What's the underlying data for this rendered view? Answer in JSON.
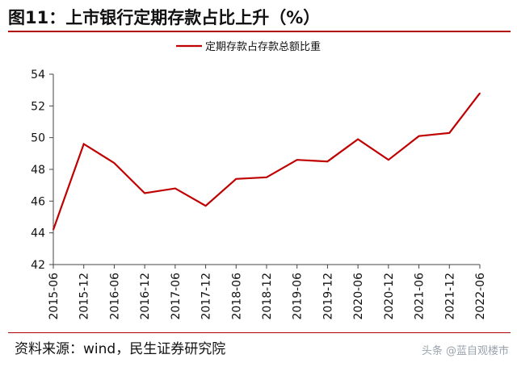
{
  "header": {
    "title": "图11：上市银行定期存款占比上升（%）"
  },
  "footer": {
    "source": "资料来源：wind，民生证券研究院",
    "watermark": "头条 @蓝自观楼市"
  },
  "chart_data": {
    "type": "line",
    "title": "图11：上市银行定期存款占比上升（%）",
    "categories": [
      "2015-06",
      "2015-12",
      "2016-06",
      "2016-12",
      "2017-06",
      "2017-12",
      "2018-06",
      "2018-12",
      "2019-06",
      "2019-12",
      "2020-06",
      "2020-12",
      "2021-06",
      "2021-12",
      "2022-06"
    ],
    "series": [
      {
        "name": "定期存款占存款总额比重",
        "color": "#c00000",
        "values": [
          44.2,
          49.6,
          48.4,
          46.5,
          46.8,
          45.7,
          47.4,
          47.5,
          48.6,
          48.5,
          49.9,
          48.6,
          50.1,
          50.3,
          52.8
        ]
      }
    ],
    "ylim": [
      42,
      54
    ],
    "yticks": [
      42,
      44,
      46,
      48,
      50,
      52,
      54
    ],
    "grid": false,
    "legend": "top-center"
  }
}
